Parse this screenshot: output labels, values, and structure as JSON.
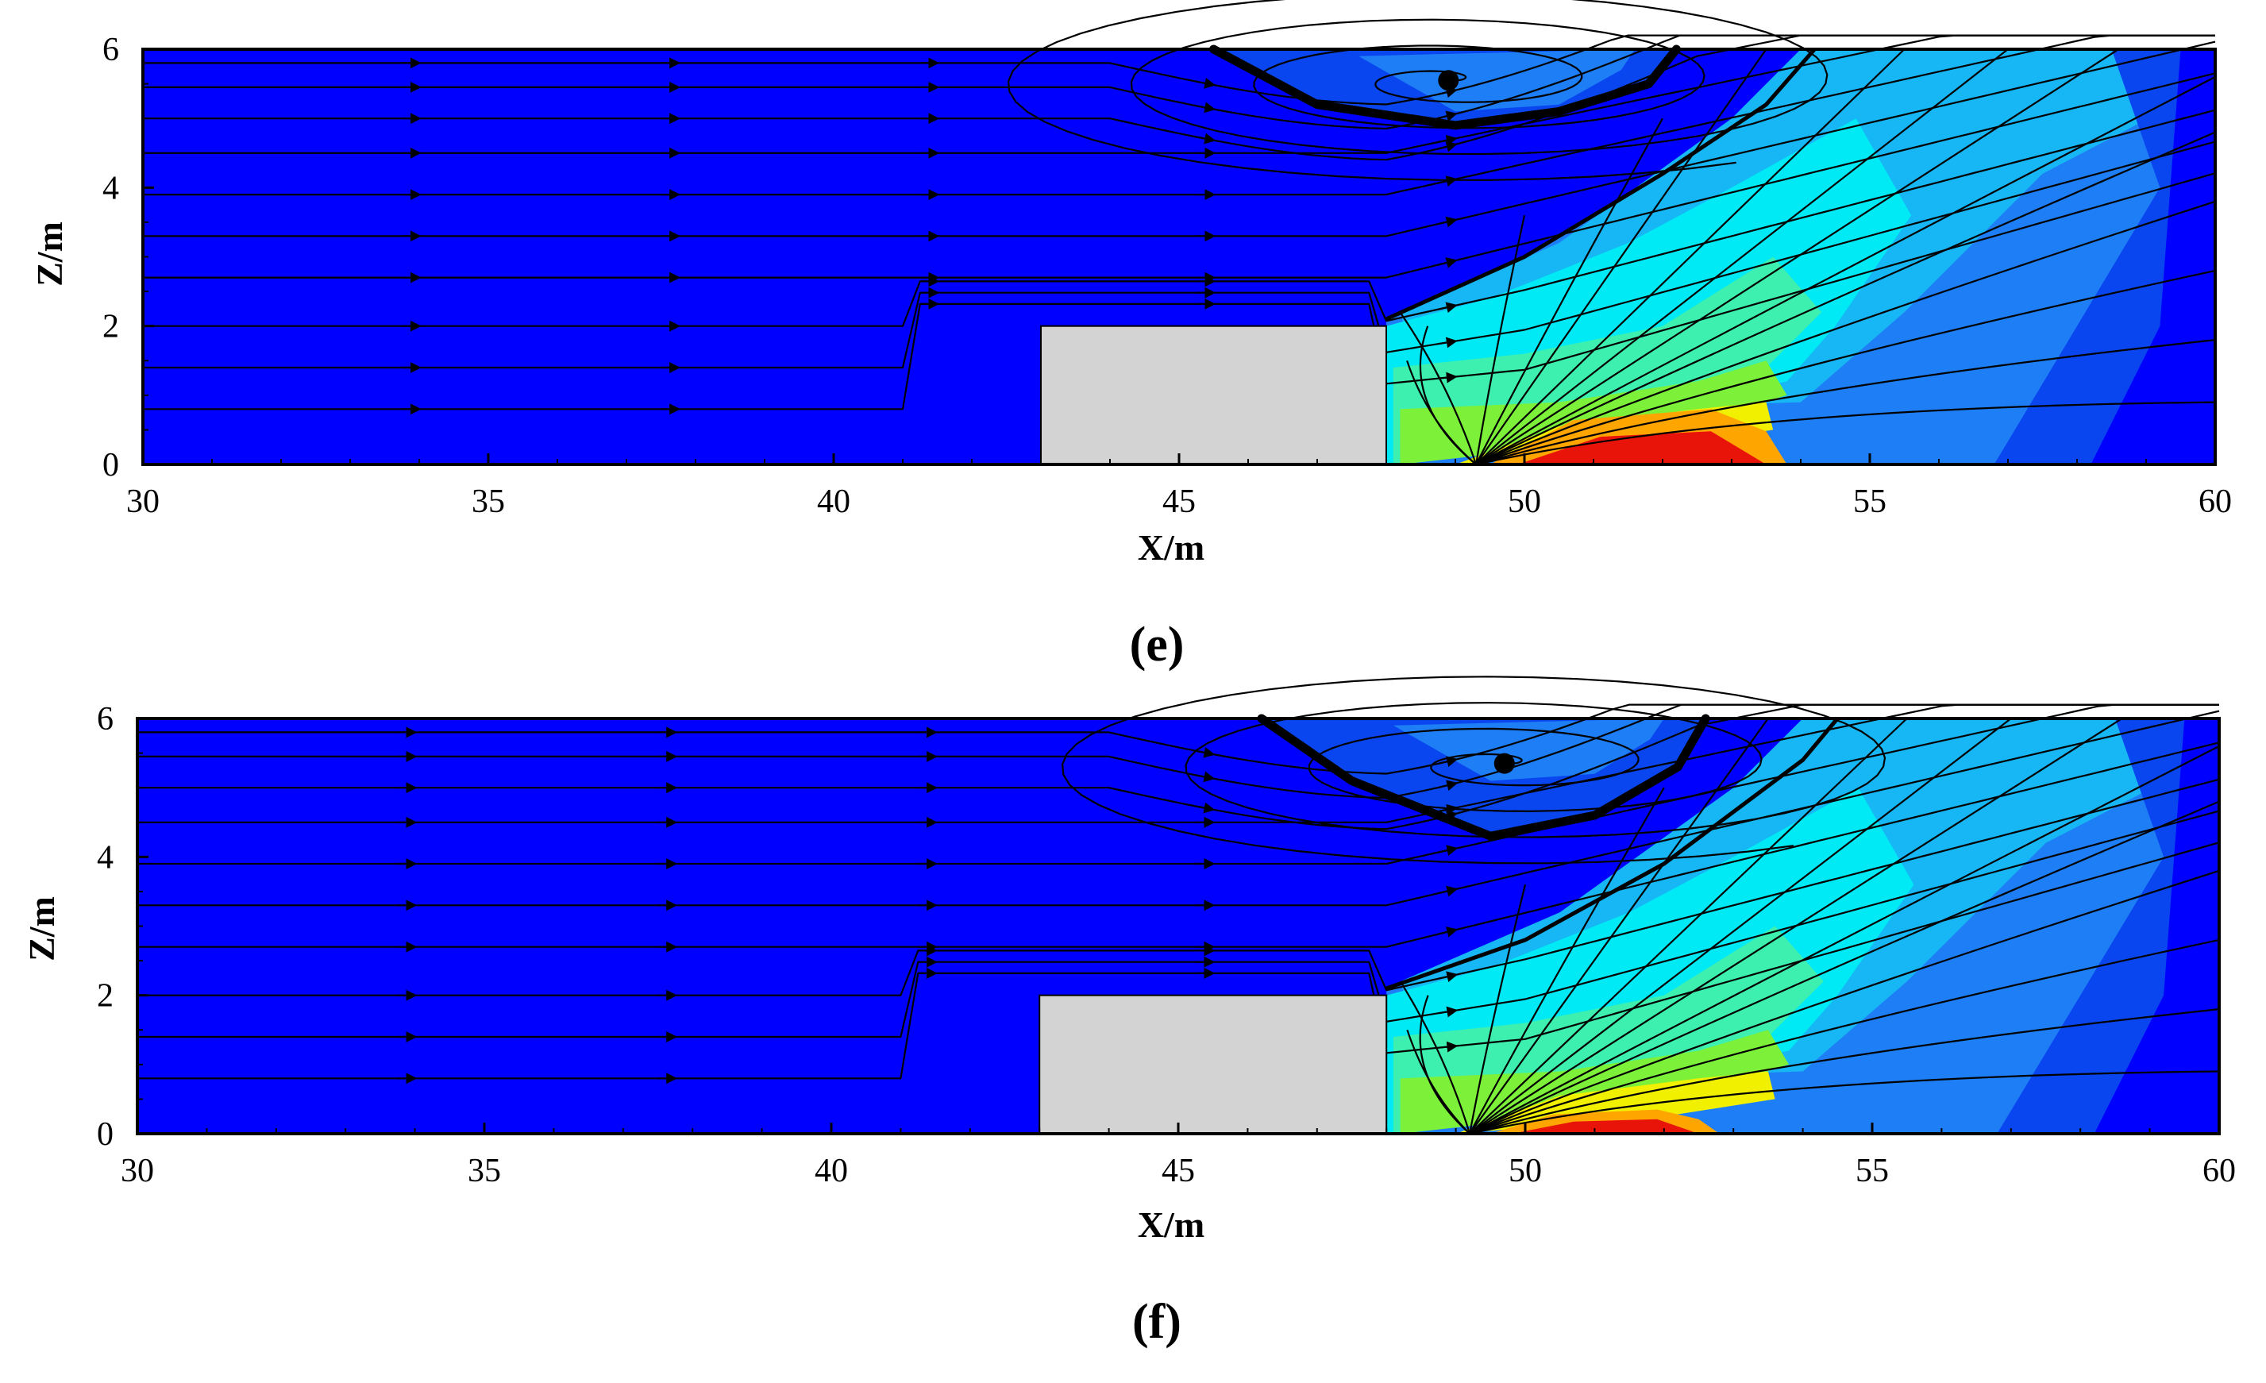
{
  "figure": {
    "background": "#ffffff"
  },
  "chart_data": [
    {
      "type": "contour",
      "panel_label": "e",
      "caption": "(e)",
      "xlabel": "X/m",
      "ylabel": "Z/m",
      "xlim": [
        30,
        60
      ],
      "ylim": [
        0,
        6
      ],
      "xticks": [
        30,
        35,
        40,
        45,
        50,
        55,
        60
      ],
      "yticks": [
        0,
        2,
        4,
        6
      ],
      "obstacle": {
        "x": [
          43,
          48
        ],
        "z": [
          0,
          2
        ],
        "color": "#d3d3d3"
      },
      "vortex_center": {
        "x": 48.9,
        "z": 5.55
      },
      "separation_line": [
        [
          45.5,
          6
        ],
        [
          47,
          5.2
        ],
        [
          49,
          4.9
        ],
        [
          50.5,
          5.1
        ],
        [
          51.8,
          5.5
        ],
        [
          52.2,
          6
        ]
      ],
      "shear_layer": [
        [
          48,
          2.1
        ],
        [
          50,
          3.0
        ],
        [
          52,
          4.2
        ],
        [
          53.5,
          5.2
        ],
        [
          54.2,
          6
        ]
      ],
      "wall_spread_point": {
        "x": 49.3,
        "z": 0
      },
      "max_region": {
        "x": [
          49.5,
          53.5
        ],
        "z": [
          0,
          0.8
        ],
        "color": "#e8140a"
      },
      "colormap": [
        "#0000ff",
        "#0a46f0",
        "#1e7ef5",
        "#17b6f5",
        "#00eaf5",
        "#3df0b0",
        "#7df03a",
        "#f0f000",
        "#ffa500",
        "#e8140a"
      ]
    },
    {
      "type": "contour",
      "panel_label": "f",
      "caption": "(f)",
      "xlabel": "X/m",
      "ylabel": "Z/m",
      "xlim": [
        30,
        60
      ],
      "ylim": [
        0,
        6
      ],
      "xticks": [
        30,
        35,
        40,
        45,
        50,
        55,
        60
      ],
      "yticks": [
        0,
        2,
        4,
        6
      ],
      "obstacle": {
        "x": [
          43,
          48
        ],
        "z": [
          0,
          2
        ],
        "color": "#d3d3d3"
      },
      "vortex_center": {
        "x": 49.7,
        "z": 5.35
      },
      "separation_line": [
        [
          46.2,
          6
        ],
        [
          47.5,
          5.1
        ],
        [
          49.5,
          4.3
        ],
        [
          51,
          4.6
        ],
        [
          52.2,
          5.3
        ],
        [
          52.6,
          6
        ]
      ],
      "shear_layer": [
        [
          48,
          2.1
        ],
        [
          50,
          2.8
        ],
        [
          52,
          3.9
        ],
        [
          54,
          5.4
        ],
        [
          54.5,
          6
        ]
      ],
      "wall_spread_point": {
        "x": 49.2,
        "z": 0
      },
      "max_region": {
        "x": [
          49.5,
          52.5
        ],
        "z": [
          0,
          0.35
        ],
        "color": "#e8140a"
      },
      "colormap": [
        "#0000ff",
        "#0a46f0",
        "#1e7ef5",
        "#17b6f5",
        "#00eaf5",
        "#3df0b0",
        "#7df03a",
        "#f0f000",
        "#ffa500",
        "#e8140a"
      ]
    }
  ]
}
